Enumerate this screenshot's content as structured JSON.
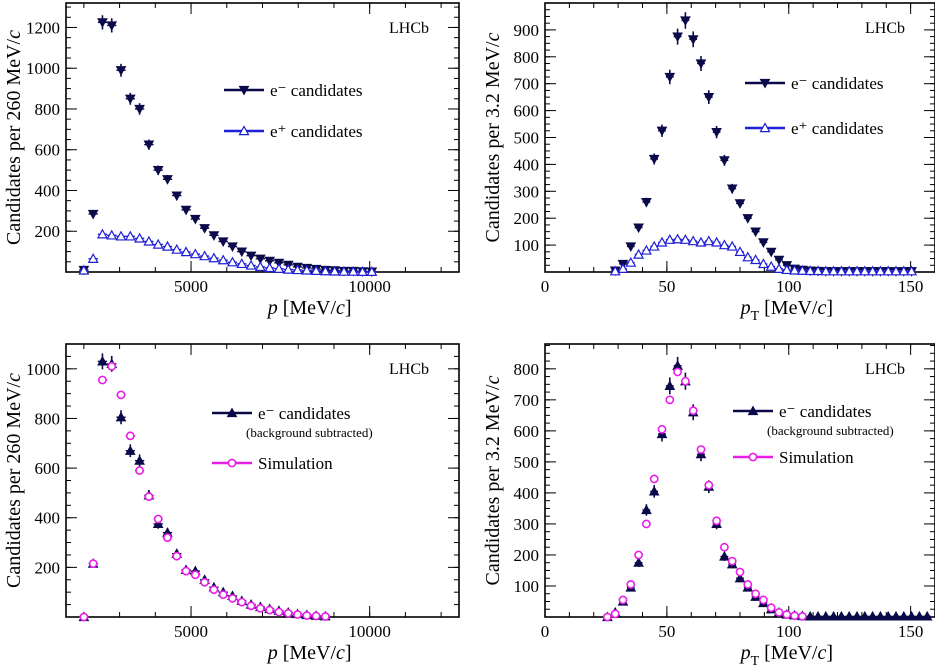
{
  "colors": {
    "black": "#000000",
    "navy": "#0a0a4a",
    "blue": "#1f1fd8",
    "magenta": "#e81ee8"
  },
  "chart_data": [
    {
      "id": "top-left",
      "type": "scatter",
      "label": "LHCb",
      "xlabel": "p [MeV/c]",
      "ylabel": "Candidates per 260 MeV/c",
      "xlim": [
        1500,
        12500
      ],
      "ylim": [
        0,
        1320
      ],
      "xticks": [
        5000,
        10000
      ],
      "yticks": [
        200,
        400,
        600,
        800,
        1000,
        1200
      ],
      "series": [
        {
          "name": "e⁻ candidates",
          "marker": "triangle-down-filled",
          "color": "#0a0a4a",
          "x": [
            2000,
            2260,
            2520,
            2780,
            3040,
            3300,
            3560,
            3820,
            4080,
            4340,
            4600,
            4860,
            5120,
            5380,
            5640,
            5900,
            6160,
            6420,
            6680,
            6940,
            7200,
            7460,
            7720,
            7980,
            8240,
            8500,
            8760,
            9020,
            9280,
            9540,
            9800,
            10060
          ],
          "y": [
            10,
            285,
            1225,
            1210,
            990,
            850,
            800,
            625,
            500,
            455,
            375,
            305,
            260,
            215,
            180,
            150,
            125,
            100,
            80,
            65,
            55,
            45,
            35,
            25,
            20,
            15,
            10,
            8,
            5,
            5,
            3,
            2
          ]
        },
        {
          "name": "e⁺ candidates",
          "marker": "triangle-up-open",
          "color": "#1f1fd8",
          "x": [
            2000,
            2260,
            2520,
            2780,
            3040,
            3300,
            3560,
            3820,
            4080,
            4340,
            4600,
            4860,
            5120,
            5380,
            5640,
            5900,
            6160,
            6420,
            6680,
            6940,
            7200,
            7460,
            7720,
            7980,
            8240,
            8500,
            8760,
            9020,
            9280,
            9540,
            9800,
            10060
          ],
          "y": [
            8,
            65,
            185,
            180,
            175,
            175,
            165,
            150,
            135,
            125,
            110,
            98,
            88,
            78,
            68,
            58,
            48,
            40,
            32,
            25,
            20,
            16,
            12,
            10,
            8,
            6,
            4,
            3,
            2,
            2,
            1,
            1
          ]
        }
      ],
      "legend": [
        "e⁻ candidates",
        "e⁺ candidates"
      ]
    },
    {
      "id": "top-right",
      "type": "scatter",
      "label": "LHCb",
      "xlabel": "pT [MeV/c]",
      "ylabel": "Candidates per 3.2 MeV/c",
      "xlim": [
        0,
        160
      ],
      "ylim": [
        0,
        1000
      ],
      "xticks": [
        0,
        50,
        100,
        150
      ],
      "yticks": [
        100,
        200,
        300,
        400,
        500,
        600,
        700,
        800,
        900
      ],
      "series": [
        {
          "name": "e⁻ candidates",
          "marker": "triangle-down-filled",
          "color": "#0a0a4a",
          "x": [
            28.8,
            32,
            35.2,
            38.4,
            41.6,
            44.8,
            48,
            51.2,
            54.4,
            57.6,
            60.8,
            64,
            67.2,
            70.4,
            73.6,
            76.8,
            80,
            83.2,
            86.4,
            89.6,
            92.8,
            96,
            99.2,
            102.4,
            105.6,
            108.8,
            112,
            115.2,
            118.4,
            121.6,
            124.8,
            128,
            131.2,
            134.4,
            137.6,
            140.8,
            144,
            147.2,
            150.4
          ],
          "y": [
            5,
            30,
            95,
            165,
            260,
            420,
            525,
            725,
            875,
            935,
            865,
            775,
            650,
            520,
            415,
            310,
            255,
            200,
            150,
            110,
            75,
            45,
            25,
            12,
            8,
            5,
            4,
            3,
            3,
            3,
            3,
            3,
            3,
            3,
            3,
            3,
            3,
            3,
            3
          ]
        },
        {
          "name": "e⁺ candidates",
          "marker": "triangle-up-open",
          "color": "#1f1fd8",
          "x": [
            28.8,
            32,
            35.2,
            38.4,
            41.6,
            44.8,
            48,
            51.2,
            54.4,
            57.6,
            60.8,
            64,
            67.2,
            70.4,
            73.6,
            76.8,
            80,
            83.2,
            86.4,
            89.6,
            92.8,
            96,
            99.2,
            102.4,
            105.6,
            108.8,
            112,
            115.2,
            118.4,
            121.6,
            124.8,
            128,
            131.2,
            134.4,
            137.6,
            140.8,
            144,
            147.2,
            150.4
          ],
          "y": [
            3,
            12,
            35,
            65,
            80,
            95,
            110,
            120,
            122,
            120,
            115,
            110,
            115,
            110,
            100,
            95,
            75,
            55,
            45,
            30,
            20,
            12,
            8,
            6,
            5,
            4,
            4,
            3,
            3,
            3,
            3,
            3,
            3,
            3,
            3,
            3,
            3,
            3,
            3
          ]
        }
      ],
      "legend": [
        "e⁻ candidates",
        "e⁺ candidates"
      ]
    },
    {
      "id": "bottom-left",
      "type": "scatter",
      "label": "LHCb",
      "xlabel": "p [MeV/c]",
      "ylabel": "Candidates per 260 MeV/c",
      "xlim": [
        1500,
        12500
      ],
      "ylim": [
        0,
        1100
      ],
      "xticks": [
        5000,
        10000
      ],
      "yticks": [
        200,
        400,
        600,
        800,
        1000
      ],
      "series": [
        {
          "name": "e⁻ candidates",
          "marker": "triangle-up-filled",
          "color": "#0a0a4a",
          "x": [
            2000,
            2260,
            2520,
            2780,
            3040,
            3300,
            3560,
            3820,
            4080,
            4340,
            4600,
            4860,
            5120,
            5380,
            5640,
            5900,
            6160,
            6420,
            6680,
            6940,
            7200,
            7460,
            7720,
            7980,
            8240,
            8500,
            8760
          ],
          "y": [
            0,
            215,
            1030,
            1020,
            805,
            670,
            630,
            490,
            375,
            340,
            255,
            190,
            185,
            150,
            120,
            100,
            85,
            65,
            50,
            40,
            32,
            25,
            18,
            12,
            8,
            5,
            3
          ]
        },
        {
          "name": "Simulation",
          "marker": "circle-open",
          "color": "#e81ee8",
          "x": [
            2000,
            2260,
            2520,
            2780,
            3040,
            3300,
            3560,
            3820,
            4080,
            4340,
            4600,
            4860,
            5120,
            5380,
            5640,
            5900,
            6160,
            6420,
            6680,
            6940,
            7200,
            7460,
            7720,
            7980,
            8240,
            8500,
            8760
          ],
          "y": [
            0,
            215,
            955,
            1010,
            895,
            730,
            590,
            485,
            395,
            320,
            245,
            185,
            170,
            140,
            110,
            90,
            75,
            60,
            45,
            35,
            28,
            20,
            15,
            10,
            6,
            4,
            2
          ]
        }
      ],
      "legend": [
        "e⁻ candidates",
        "(background subtracted)",
        "Simulation"
      ]
    },
    {
      "id": "bottom-right",
      "type": "scatter",
      "label": "LHCb",
      "xlabel": "pT [MeV/c]",
      "ylabel": "Candidates per 3.2 MeV/c",
      "xlim": [
        0,
        160
      ],
      "ylim": [
        0,
        880
      ],
      "xticks": [
        0,
        50,
        100,
        150
      ],
      "yticks": [
        100,
        200,
        300,
        400,
        500,
        600,
        700,
        800
      ],
      "series": [
        {
          "name": "e⁻ candidates",
          "marker": "triangle-up-filled",
          "color": "#0a0a4a",
          "x": [
            25.6,
            28.8,
            32,
            35.2,
            38.4,
            41.6,
            44.8,
            48,
            51.2,
            54.4,
            57.6,
            60.8,
            64,
            67.2,
            70.4,
            73.6,
            76.8,
            80,
            83.2,
            86.4,
            89.6,
            92.8,
            96,
            99.2,
            102.4,
            105.6,
            108.8,
            112,
            115.2,
            118.4,
            121.6,
            124.8,
            128,
            131.2,
            134.4,
            137.6,
            140.8,
            144,
            147.2,
            150.4,
            153.6,
            156.8
          ],
          "y": [
            0,
            15,
            50,
            95,
            175,
            345,
            405,
            590,
            745,
            810,
            760,
            660,
            525,
            420,
            300,
            195,
            170,
            125,
            95,
            65,
            45,
            25,
            15,
            8,
            5,
            3,
            2,
            2,
            2,
            2,
            2,
            2,
            2,
            2,
            2,
            2,
            2,
            2,
            2,
            2,
            2,
            2
          ]
        },
        {
          "name": "Simulation",
          "marker": "circle-open",
          "color": "#e81ee8",
          "x": [
            25.6,
            28.8,
            32,
            35.2,
            38.4,
            41.6,
            44.8,
            48,
            51.2,
            54.4,
            57.6,
            60.8,
            64,
            67.2,
            70.4,
            73.6,
            76.8,
            80,
            83.2,
            86.4,
            89.6,
            92.8,
            96,
            99.2,
            102.4,
            105.6
          ],
          "y": [
            0,
            10,
            55,
            105,
            200,
            300,
            445,
            605,
            700,
            790,
            760,
            665,
            540,
            425,
            310,
            225,
            180,
            145,
            105,
            75,
            55,
            30,
            15,
            8,
            4,
            2
          ]
        }
      ],
      "legend": [
        "e⁻ candidates",
        "(background subtracted)",
        "Simulation"
      ]
    }
  ]
}
